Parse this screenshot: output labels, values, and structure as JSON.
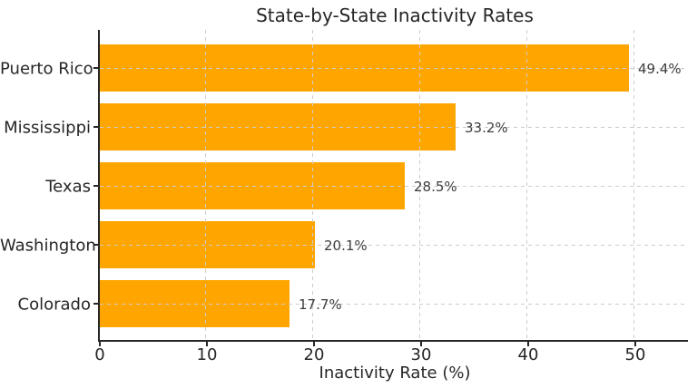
{
  "chart_data": {
    "type": "bar",
    "orientation": "horizontal",
    "title": "State-by-State Inactivity Rates",
    "xlabel": "Inactivity Rate (%)",
    "ylabel": "",
    "categories": [
      "Puerto Rico",
      "Mississippi",
      "Texas",
      "Washington",
      "Colorado"
    ],
    "values": [
      49.4,
      33.2,
      28.5,
      20.1,
      17.7
    ],
    "value_labels": [
      "49.4%",
      "33.2%",
      "28.5%",
      "20.1%",
      "17.7%"
    ],
    "xticks": [
      0,
      10,
      20,
      30,
      40,
      50
    ],
    "xlim": [
      0,
      55
    ],
    "grid": "both-dashed",
    "legend": null,
    "colors": {
      "bar": "#FFA500",
      "grid": "#cccccc",
      "spine": "#262626",
      "tick_text": "#262626",
      "value_text": "#3d3d3d"
    }
  }
}
